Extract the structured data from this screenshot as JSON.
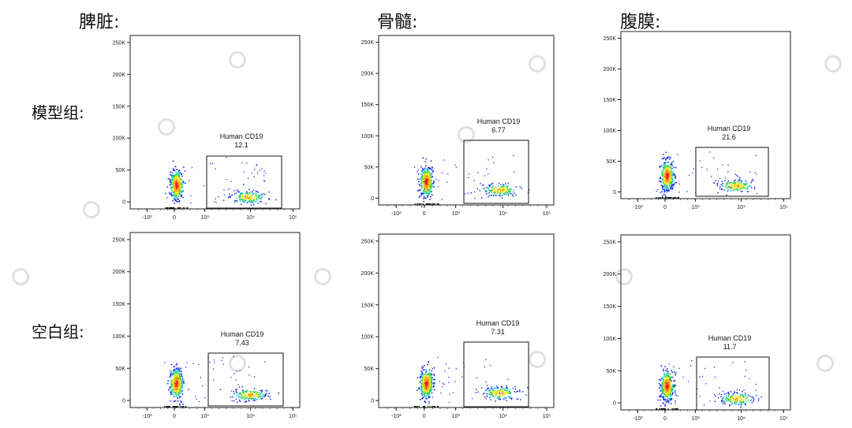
{
  "columns": [
    "脾脏:",
    "骨髓:",
    "腹膜:"
  ],
  "rows": [
    "模型组:",
    "空白组:"
  ],
  "chart_data": {
    "type": "scatter",
    "y_ticks": [
      "250K",
      "200K",
      "150K",
      "100K",
      "50K",
      "0"
    ],
    "x_ticks": [
      "-10³",
      "0",
      "10³",
      "10⁴",
      "10⁵"
    ],
    "gate_label": "Human CD19",
    "panels": [
      {
        "tissue": "脾脏",
        "group": "模型组",
        "gate_value": "12.1"
      },
      {
        "tissue": "骨髓",
        "group": "模型组",
        "gate_value": "6.77"
      },
      {
        "tissue": "腹膜",
        "group": "模型组",
        "gate_value": "21.6"
      },
      {
        "tissue": "脾脏",
        "group": "空白组",
        "gate_value": "7.43"
      },
      {
        "tissue": "骨髓",
        "group": "空白组",
        "gate_value": "7.31"
      },
      {
        "tissue": "腹膜",
        "group": "空白组",
        "gate_value": "11.7"
      }
    ]
  }
}
